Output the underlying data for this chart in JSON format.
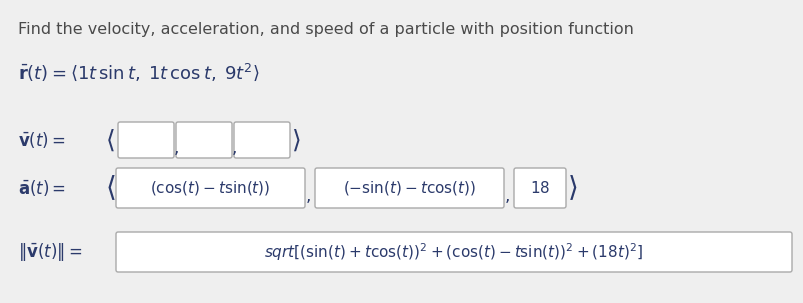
{
  "bg_color": "#efefef",
  "title_text": "Find the velocity, acceleration, and speed of a particle with position function",
  "title_color": "#4a4a4a",
  "title_fontsize": 12,
  "math_color": "#2b3a6b",
  "box_edge_color": "#aaaaaa",
  "box_face_color": "#ffffff",
  "figsize": [
    8.04,
    3.03
  ],
  "dpi": 100
}
